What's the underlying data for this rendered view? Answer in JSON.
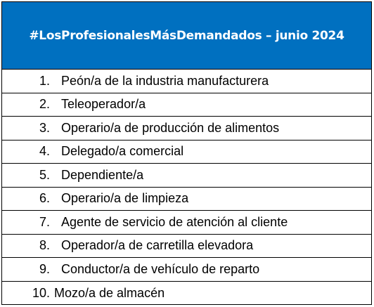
{
  "header": {
    "title": "#LosProfesionalesMásDemandados – junio 2024",
    "background_color": "#0070c0",
    "text_color": "#ffffff"
  },
  "items": [
    {
      "number": "1.",
      "label": "Peón/a de la industria manufacturera"
    },
    {
      "number": "2.",
      "label": "Teleoperador/a"
    },
    {
      "number": "3.",
      "label": "Operario/a de producción de alimentos"
    },
    {
      "number": "4.",
      "label": "Delegado/a comercial"
    },
    {
      "number": "5.",
      "label": "Dependiente/a"
    },
    {
      "number": "6.",
      "label": "Operario/a de limpieza"
    },
    {
      "number": "7.",
      "label": "Agente de servicio de atención al cliente"
    },
    {
      "number": "8.",
      "label": "Operador/a de carretilla elevadora"
    },
    {
      "number": "9.",
      "label": "Conductor/a de vehículo de reparto"
    },
    {
      "number": "10.",
      "label": "Mozo/a de almacén"
    }
  ]
}
